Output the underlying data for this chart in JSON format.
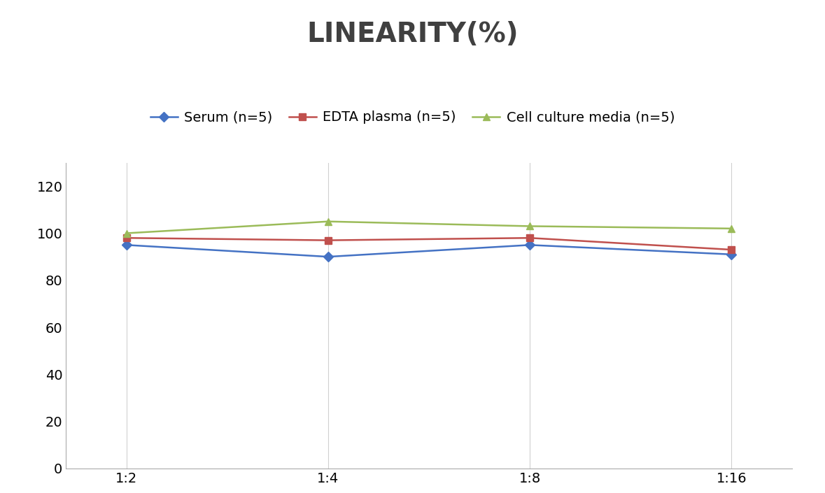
{
  "title": "LINEARITY(%)",
  "x_labels": [
    "1:2",
    "1:4",
    "1:8",
    "1:16"
  ],
  "series": [
    {
      "label": "Serum (n=5)",
      "values": [
        95,
        90,
        95,
        91
      ],
      "color": "#4472C4",
      "marker": "D",
      "marker_size": 7
    },
    {
      "label": "EDTA plasma (n=5)",
      "values": [
        98,
        97,
        98,
        93
      ],
      "color": "#C0504D",
      "marker": "s",
      "marker_size": 7
    },
    {
      "label": "Cell culture media (n=5)",
      "values": [
        100,
        105,
        103,
        102
      ],
      "color": "#9BBB59",
      "marker": "^",
      "marker_size": 7
    }
  ],
  "ylim": [
    0,
    130
  ],
  "yticks": [
    0,
    20,
    40,
    60,
    80,
    100,
    120
  ],
  "title_fontsize": 28,
  "legend_fontsize": 14,
  "tick_fontsize": 14,
  "background_color": "#ffffff",
  "grid_color": "#d0d0d0",
  "line_width": 1.8,
  "spine_color": "#aaaaaa"
}
